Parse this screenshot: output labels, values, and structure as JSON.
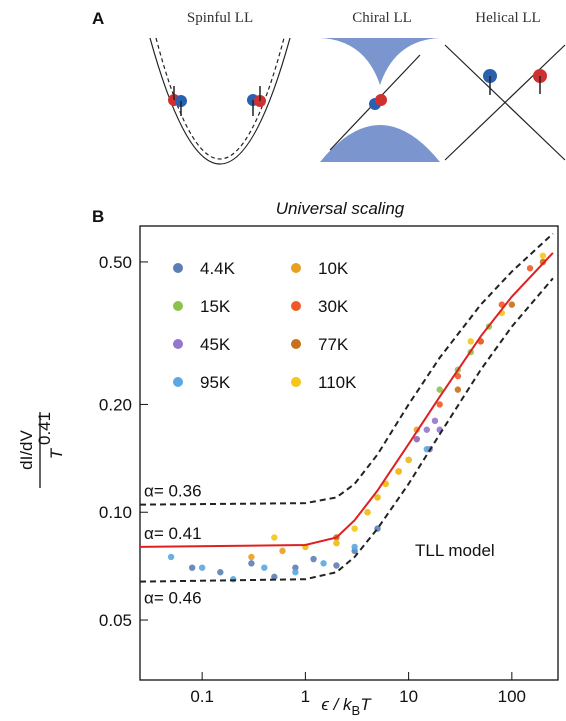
{
  "panel_a": {
    "label": "A",
    "diagrams": [
      {
        "title": "Spinful LL"
      },
      {
        "title": "Chiral LL"
      },
      {
        "title": "Helical LL"
      }
    ]
  },
  "chart_data": {
    "type": "scatter",
    "panel_label": "B",
    "title": "Universal scaling",
    "x_label": {
      "text": "ϵ / k",
      "subscript": "B",
      "suffix": "T"
    },
    "y_label": {
      "numerator": "dI/dV",
      "denominator": "T",
      "exponent": "0.41"
    },
    "log_x": true,
    "log_y": true,
    "xlim": [
      0.025,
      280
    ],
    "ylim": [
      0.034,
      0.63
    ],
    "xticks": [
      0.1,
      1,
      10,
      100
    ],
    "yticks": [
      {
        "value": 0.5,
        "label": "0.50"
      },
      {
        "value": 0.2,
        "label": "0.20"
      },
      {
        "value": 0.1,
        "label": "0.10"
      },
      0.05
    ],
    "series": [
      {
        "name": "4.4K",
        "color": "#5b7fb5",
        "x": [
          0.08,
          0.15,
          0.3,
          0.5,
          0.8,
          1.2,
          2,
          3,
          5
        ],
        "values": [
          0.07,
          0.068,
          0.072,
          0.066,
          0.07,
          0.074,
          0.071,
          0.078,
          0.09
        ]
      },
      {
        "name": "10K",
        "color": "#e8a020",
        "x": [
          0.3,
          0.6,
          1,
          2,
          4,
          6,
          8,
          12
        ],
        "values": [
          0.075,
          0.078,
          0.08,
          0.082,
          0.1,
          0.12,
          0.13,
          0.17
        ]
      },
      {
        "name": "15K",
        "color": "#8bc34a",
        "x": [
          20,
          30,
          40,
          50,
          60
        ],
        "values": [
          0.22,
          0.25,
          0.28,
          0.3,
          0.33
        ]
      },
      {
        "name": "30K",
        "color": "#f05a28",
        "x": [
          8,
          12,
          20,
          30,
          50,
          80,
          150
        ],
        "values": [
          0.13,
          0.16,
          0.2,
          0.24,
          0.3,
          0.38,
          0.48
        ]
      },
      {
        "name": "45K",
        "color": "#9575cd",
        "x": [
          12,
          15,
          18,
          20,
          16
        ],
        "values": [
          0.16,
          0.17,
          0.18,
          0.17,
          0.15
        ]
      },
      {
        "name": "77K",
        "color": "#c8701a",
        "x": [
          2,
          5,
          10,
          30,
          100,
          200
        ],
        "values": [
          0.085,
          0.11,
          0.14,
          0.22,
          0.38,
          0.5
        ]
      },
      {
        "name": "95K",
        "color": "#5aa9e0",
        "x": [
          0.05,
          0.1,
          0.2,
          0.4,
          0.8,
          1.5,
          3,
          10,
          15
        ],
        "values": [
          0.075,
          0.07,
          0.065,
          0.07,
          0.068,
          0.072,
          0.08,
          0.14,
          0.15
        ]
      },
      {
        "name": "110K",
        "color": "#f5c518",
        "x": [
          0.5,
          1,
          2,
          3,
          4,
          5,
          6,
          8,
          10,
          40,
          80,
          200
        ],
        "values": [
          0.085,
          0.08,
          0.082,
          0.09,
          0.1,
          0.11,
          0.12,
          0.13,
          0.14,
          0.3,
          0.36,
          0.52
        ]
      }
    ],
    "fits": [
      {
        "label": "α= 0.36",
        "color": "#222222",
        "dashed": true,
        "x": [
          0.025,
          1,
          2,
          3,
          5,
          10,
          20,
          50,
          100,
          250
        ],
        "values": [
          0.105,
          0.106,
          0.11,
          0.12,
          0.145,
          0.2,
          0.27,
          0.38,
          0.47,
          0.6
        ]
      },
      {
        "label": "α= 0.41",
        "color": "#e02020",
        "dashed": false,
        "x": [
          0.025,
          1,
          2,
          3,
          5,
          10,
          20,
          50,
          100,
          250
        ],
        "values": [
          0.08,
          0.081,
          0.085,
          0.095,
          0.115,
          0.155,
          0.21,
          0.31,
          0.4,
          0.53
        ]
      },
      {
        "label": "α= 0.46",
        "color": "#222222",
        "dashed": true,
        "x": [
          0.025,
          1,
          2,
          3,
          5,
          10,
          20,
          50,
          100,
          250
        ],
        "values": [
          0.064,
          0.065,
          0.068,
          0.075,
          0.09,
          0.12,
          0.165,
          0.25,
          0.33,
          0.45
        ]
      }
    ],
    "annotations": [
      "TLL model"
    ]
  }
}
